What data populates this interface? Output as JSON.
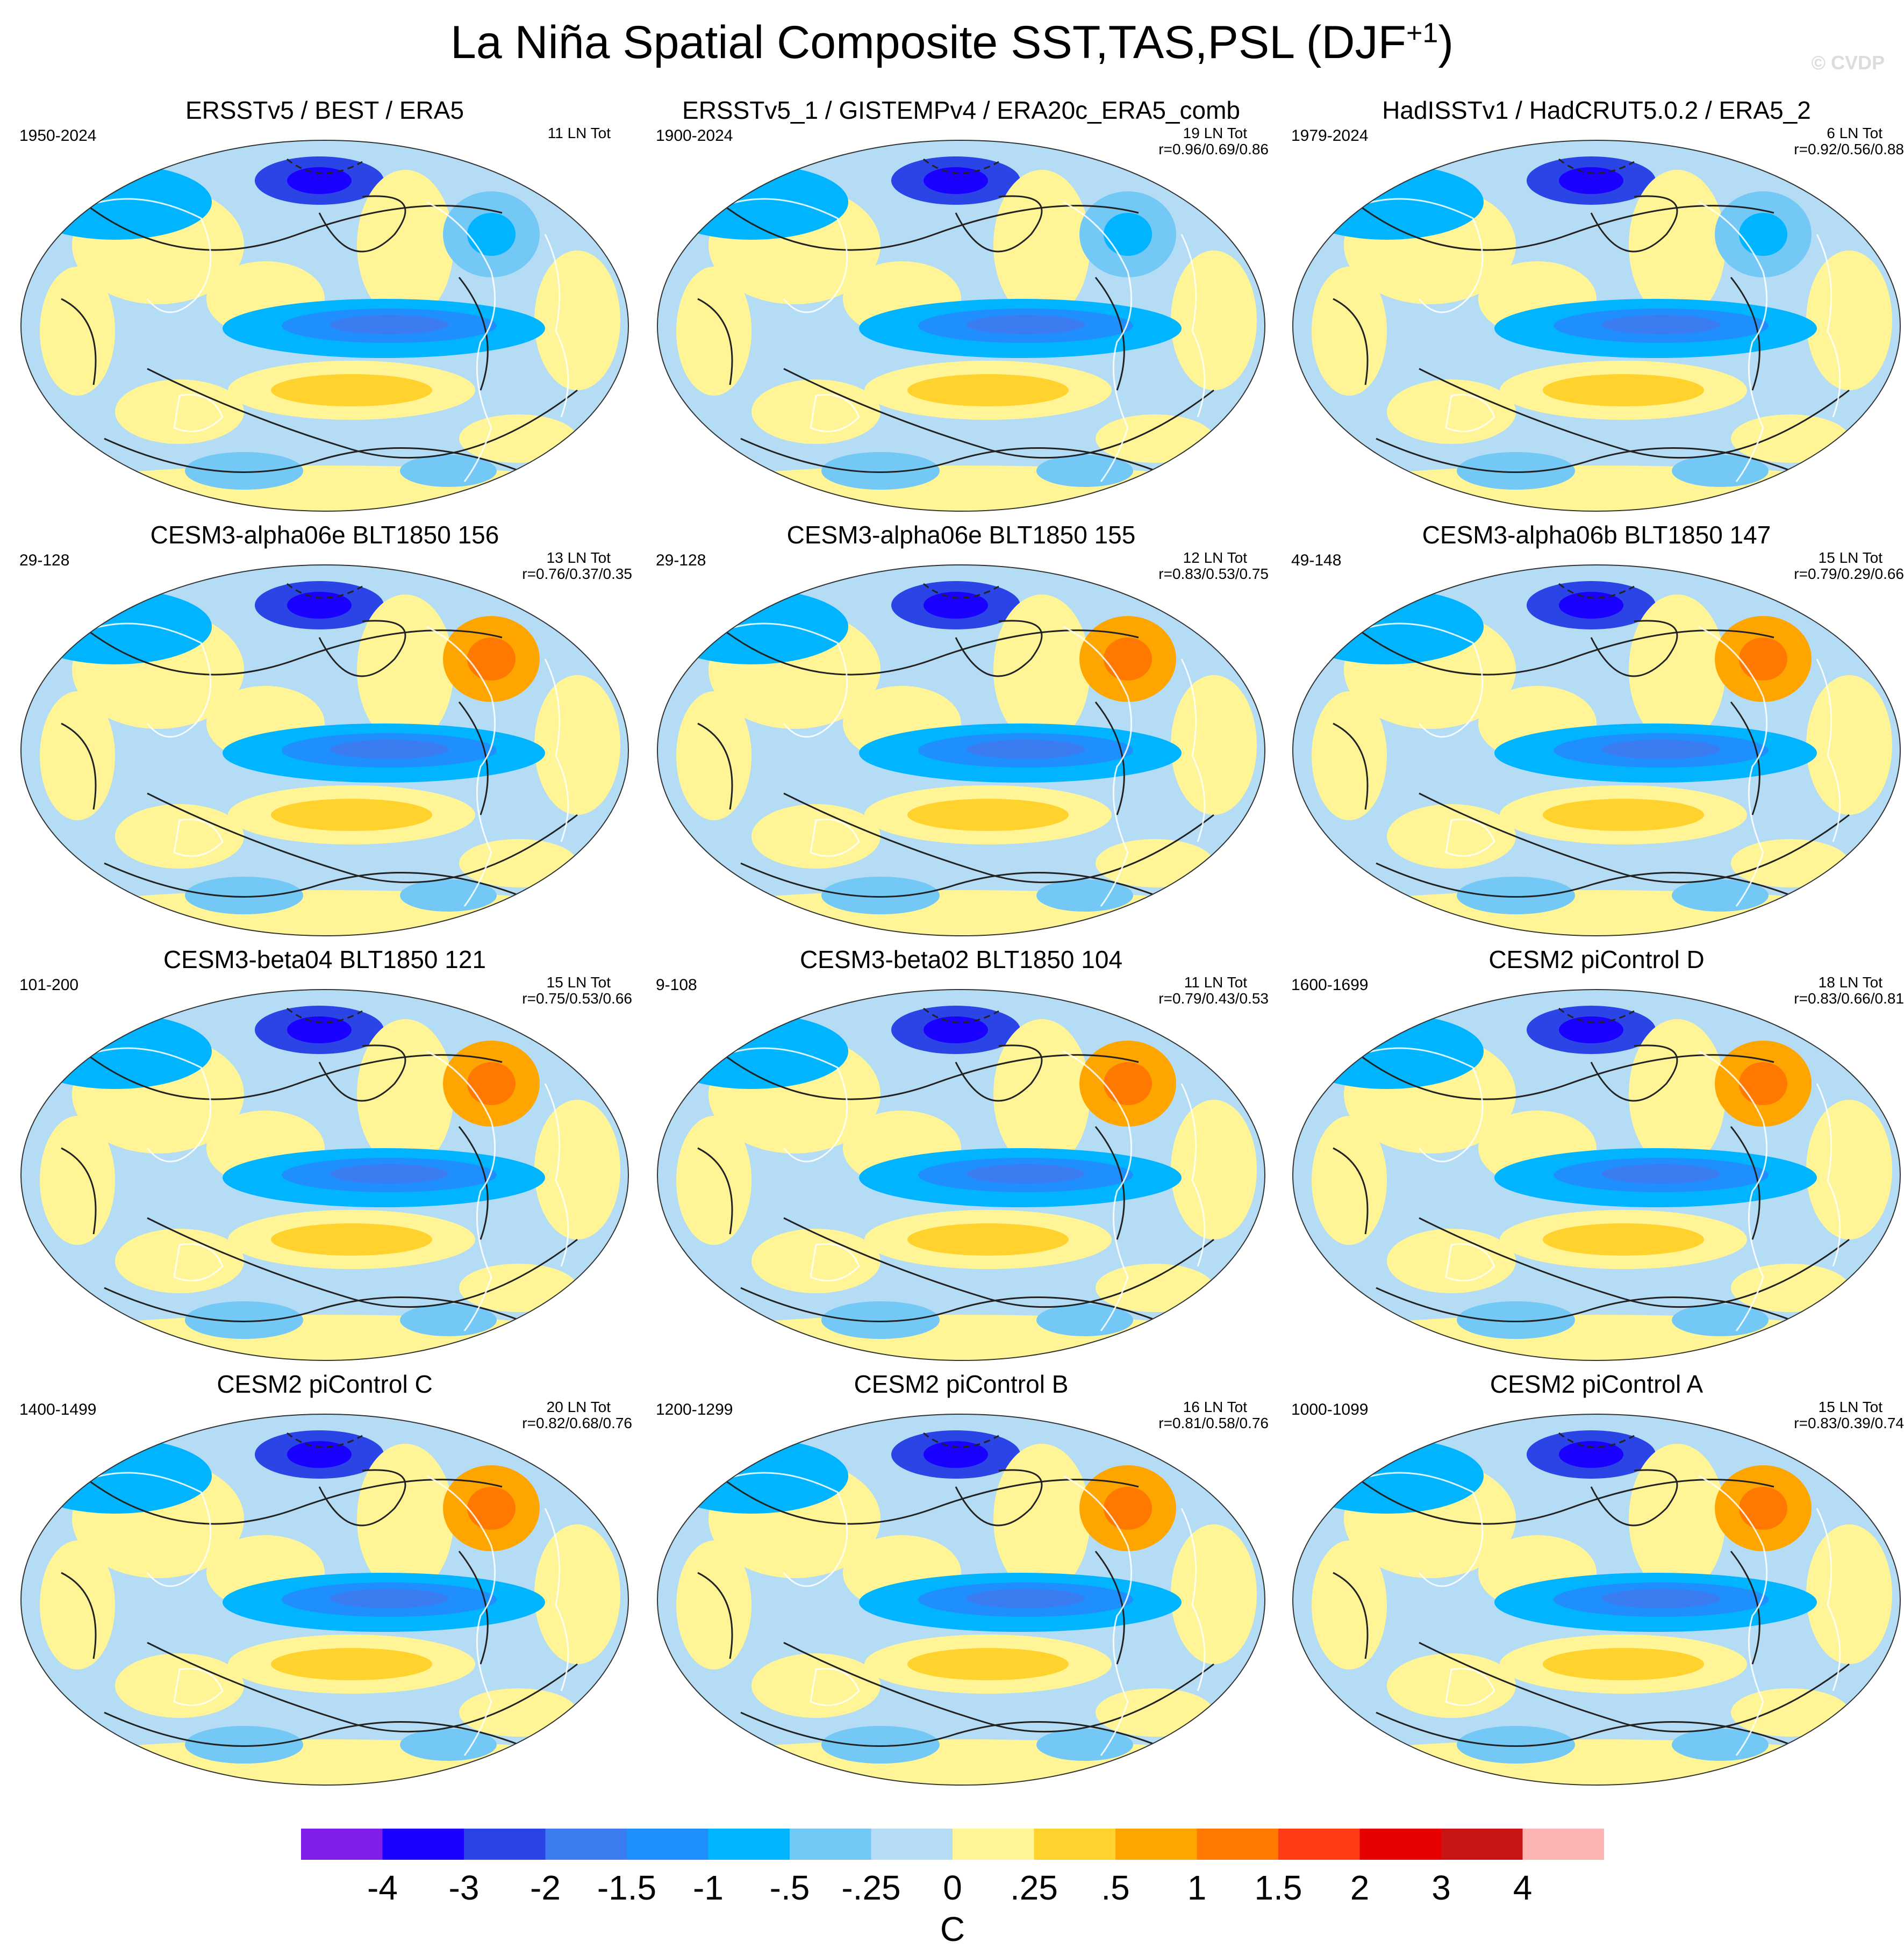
{
  "title": "La Niña Spatial Composite SST,TAS,PSL (DJF",
  "title_superscript": "+1",
  "title_suffix": ")",
  "watermark": "© CVDP",
  "palette": [
    "#7f1ee6",
    "#1a00ff",
    "#2b44e6",
    "#3b7cf0",
    "#1f8fff",
    "#00b4ff",
    "#73c8f5",
    "#b4dcf5",
    "#fff596",
    "#ffd22d",
    "#ffa500",
    "#ff7800",
    "#ff3c14",
    "#e60000",
    "#c81414",
    "#ffb4b4"
  ],
  "colorbar": {
    "labels": [
      "-4",
      "-3",
      "-2",
      "-1.5",
      "-1",
      "-.5",
      "-.25",
      "0",
      ".25",
      ".5",
      "1",
      "1.5",
      "2",
      "3",
      "4"
    ],
    "units": "C"
  },
  "panels": [
    {
      "title": "ERSSTv5 / BEST / ERA5",
      "period": "1950-2024",
      "count": "11 LN Tot",
      "r": ""
    },
    {
      "title": "ERSSTv5_1 / GISTEMPv4 / ERA20c_ERA5_comb",
      "period": "1900-2024",
      "count": "19 LN Tot",
      "r": "r=0.96/0.69/0.86"
    },
    {
      "title": "HadISSTv1 / HadCRUT5.0.2 / ERA5_2",
      "period": "1979-2024",
      "count": "6 LN Tot",
      "r": "r=0.92/0.56/0.88"
    },
    {
      "title": "CESM3-alpha06e BLT1850 156",
      "period": "29-128",
      "count": "13 LN Tot",
      "r": "r=0.76/0.37/0.35"
    },
    {
      "title": "CESM3-alpha06e BLT1850 155",
      "period": "29-128",
      "count": "12 LN Tot",
      "r": "r=0.83/0.53/0.75"
    },
    {
      "title": "CESM3-alpha06b BLT1850 147",
      "period": "49-148",
      "count": "15 LN Tot",
      "r": "r=0.79/0.29/0.66"
    },
    {
      "title": "CESM3-beta04 BLT1850 121",
      "period": "101-200",
      "count": "15 LN Tot",
      "r": "r=0.75/0.53/0.66"
    },
    {
      "title": "CESM3-beta02 BLT1850 104",
      "period": "9-108",
      "count": "11 LN Tot",
      "r": "r=0.79/0.43/0.53"
    },
    {
      "title": "CESM2 piControl D",
      "period": "1600-1699",
      "count": "18 LN Tot",
      "r": "r=0.83/0.66/0.81"
    },
    {
      "title": "CESM2 piControl C",
      "period": "1400-1499",
      "count": "20 LN Tot",
      "r": "r=0.82/0.68/0.76"
    },
    {
      "title": "CESM2 piControl B",
      "period": "1200-1299",
      "count": "16 LN Tot",
      "r": "r=0.81/0.58/0.76"
    },
    {
      "title": "CESM2 piControl A",
      "period": "1000-1099",
      "count": "15 LN Tot",
      "r": "r=0.83/0.39/0.74"
    }
  ]
}
